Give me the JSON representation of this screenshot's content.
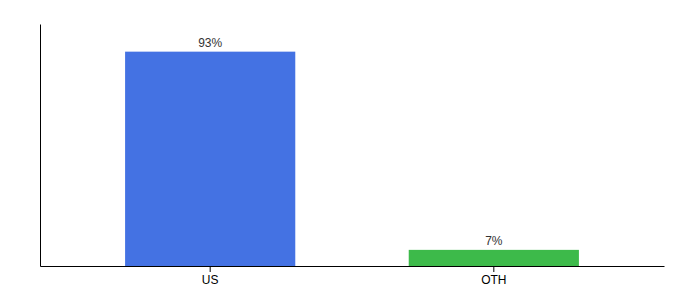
{
  "chart_data": {
    "type": "bar",
    "categories": [
      "US",
      "OTH"
    ],
    "values": [
      93,
      7
    ],
    "value_labels": [
      "93%",
      "7%"
    ],
    "colors": [
      "#4472e3",
      "#3dba4a"
    ],
    "ylim": [
      0,
      105
    ],
    "data_labels": true,
    "tick_labels": "x",
    "grid": false
  }
}
